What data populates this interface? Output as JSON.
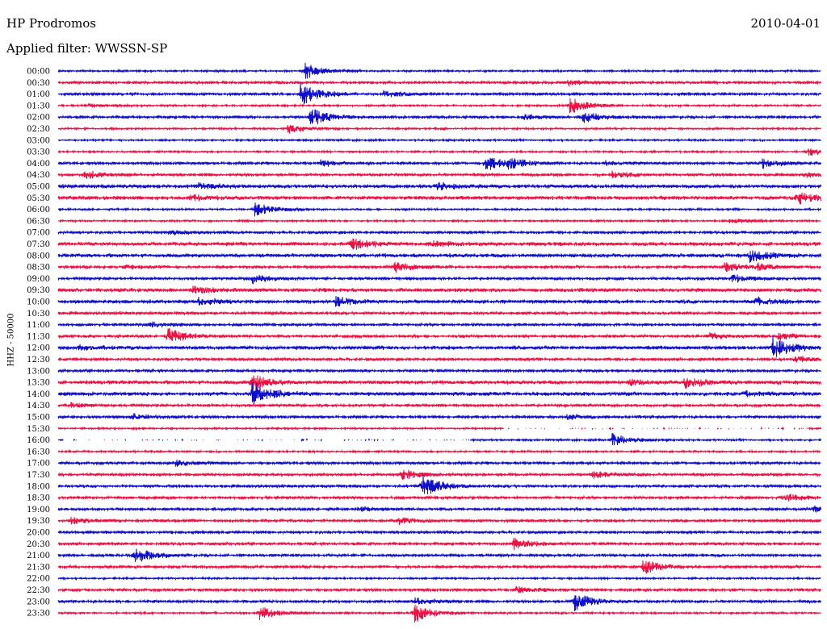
{
  "header": {
    "station": "HP Prodromos",
    "date": "2010-04-01",
    "filter": "Applied filter: WWSSN-SP",
    "scale": "HHZ - 50000"
  },
  "colors": {
    "odd": "#1010cc",
    "even": "#ee1144"
  },
  "chart_data": {
    "type": "line",
    "title": "HP Prodromos",
    "ylabel": "HHZ - 50000",
    "x_axis": "minutes within each 30-minute trace",
    "rows": [
      "00:00",
      "00:30",
      "01:00",
      "01:30",
      "02:00",
      "02:30",
      "03:00",
      "03:30",
      "04:00",
      "04:30",
      "05:00",
      "05:30",
      "06:00",
      "06:30",
      "07:00",
      "07:30",
      "08:00",
      "08:30",
      "09:00",
      "09:30",
      "10:00",
      "10:30",
      "11:00",
      "11:30",
      "12:00",
      "12:30",
      "13:00",
      "13:30",
      "14:00",
      "14:30",
      "15:00",
      "15:30",
      "16:00",
      "16:30",
      "17:00",
      "17:30",
      "18:00",
      "18:30",
      "19:00",
      "19:30",
      "20:00",
      "20:30",
      "21:00",
      "21:30",
      "22:00",
      "22:30",
      "23:00",
      "23:30"
    ],
    "noise_levels": [
      1,
      1.5,
      1.5,
      1,
      1.5,
      1,
      1,
      1,
      1.5,
      1.5,
      2,
      2,
      1,
      1,
      1.5,
      2,
      2,
      1.5,
      1.5,
      2,
      2,
      1.5,
      1.5,
      1.5,
      2,
      1.5,
      1.5,
      2,
      2,
      1.5,
      1.5,
      1,
      1,
      1,
      1.5,
      1.5,
      1.5,
      1.5,
      1.5,
      1.5,
      1.5,
      1.5,
      1.5,
      1.5,
      1,
      1.5,
      1.5,
      1
    ],
    "events": [
      {
        "row": "00:00",
        "minute": 9.7,
        "amplitude": 10
      },
      {
        "row": "00:30",
        "minute": 20.0,
        "amplitude": 3
      },
      {
        "row": "01:00",
        "minute": 9.5,
        "amplitude": 16
      },
      {
        "row": "01:00",
        "minute": 12.8,
        "amplitude": 4
      },
      {
        "row": "01:30",
        "minute": 20.1,
        "amplitude": 11
      },
      {
        "row": "01:30",
        "minute": 1.2,
        "amplitude": 2
      },
      {
        "row": "02:00",
        "minute": 9.9,
        "amplitude": 12
      },
      {
        "row": "02:00",
        "minute": 18.3,
        "amplitude": 3
      },
      {
        "row": "02:00",
        "minute": 20.6,
        "amplitude": 7
      },
      {
        "row": "02:30",
        "minute": 9.0,
        "amplitude": 6
      },
      {
        "row": "03:30",
        "minute": 29.5,
        "amplitude": 5
      },
      {
        "row": "04:00",
        "minute": 10.3,
        "amplitude": 4
      },
      {
        "row": "04:00",
        "minute": 16.8,
        "amplitude": 10
      },
      {
        "row": "04:00",
        "minute": 17.7,
        "amplitude": 5
      },
      {
        "row": "04:00",
        "minute": 27.7,
        "amplitude": 6
      },
      {
        "row": "04:00",
        "minute": 21.5,
        "amplitude": 2
      },
      {
        "row": "04:30",
        "minute": 1.0,
        "amplitude": 5
      },
      {
        "row": "04:30",
        "minute": 21.8,
        "amplitude": 4
      },
      {
        "row": "04:30",
        "minute": 29.4,
        "amplitude": 3
      },
      {
        "row": "05:00",
        "minute": 5.5,
        "amplitude": 4
      },
      {
        "row": "05:00",
        "minute": 14.9,
        "amplitude": 4
      },
      {
        "row": "05:30",
        "minute": 5.2,
        "amplitude": 3
      },
      {
        "row": "05:30",
        "minute": 29.1,
        "amplitude": 7
      },
      {
        "row": "06:00",
        "minute": 7.7,
        "amplitude": 9
      },
      {
        "row": "06:30",
        "minute": 26.4,
        "amplitude": 3
      },
      {
        "row": "07:00",
        "minute": 4.3,
        "amplitude": 3
      },
      {
        "row": "07:30",
        "minute": 11.5,
        "amplitude": 7
      },
      {
        "row": "07:30",
        "minute": 14.7,
        "amplitude": 3
      },
      {
        "row": "08:00",
        "minute": 27.2,
        "amplitude": 8
      },
      {
        "row": "08:30",
        "minute": 13.2,
        "amplitude": 6
      },
      {
        "row": "08:30",
        "minute": 26.2,
        "amplitude": 6
      },
      {
        "row": "08:30",
        "minute": 27.5,
        "amplitude": 4
      },
      {
        "row": "08:30",
        "minute": 2.5,
        "amplitude": 3
      },
      {
        "row": "09:00",
        "minute": 7.6,
        "amplitude": 6
      },
      {
        "row": "09:00",
        "minute": 26.5,
        "amplitude": 5
      },
      {
        "row": "09:30",
        "minute": 5.3,
        "amplitude": 4
      },
      {
        "row": "10:00",
        "minute": 10.9,
        "amplitude": 6
      },
      {
        "row": "10:00",
        "minute": 5.5,
        "amplitude": 5
      },
      {
        "row": "10:00",
        "minute": 27.4,
        "amplitude": 5
      },
      {
        "row": "11:00",
        "minute": 3.6,
        "amplitude": 3
      },
      {
        "row": "11:30",
        "minute": 4.3,
        "amplitude": 10
      },
      {
        "row": "11:30",
        "minute": 25.6,
        "amplitude": 4
      },
      {
        "row": "11:30",
        "minute": 28.3,
        "amplitude": 4
      },
      {
        "row": "12:00",
        "minute": 28.1,
        "amplitude": 14
      },
      {
        "row": "12:00",
        "minute": 0.8,
        "amplitude": 3
      },
      {
        "row": "12:30",
        "minute": 29.0,
        "amplitude": 4
      },
      {
        "row": "13:30",
        "minute": 7.6,
        "amplitude": 11
      },
      {
        "row": "13:30",
        "minute": 24.6,
        "amplitude": 8
      },
      {
        "row": "13:30",
        "minute": 22.5,
        "amplitude": 3
      },
      {
        "row": "14:00",
        "minute": 7.6,
        "amplitude": 16
      },
      {
        "row": "14:00",
        "minute": 27.0,
        "amplitude": 3
      },
      {
        "row": "14:30",
        "minute": 0.5,
        "amplitude": 3
      },
      {
        "row": "15:00",
        "minute": 2.9,
        "amplitude": 4
      },
      {
        "row": "15:00",
        "minute": 20.0,
        "amplitude": 3
      },
      {
        "row": "16:00",
        "minute": 21.8,
        "amplitude": 8
      },
      {
        "row": "17:00",
        "minute": 4.6,
        "amplitude": 4
      },
      {
        "row": "17:30",
        "minute": 13.5,
        "amplitude": 7
      },
      {
        "row": "17:30",
        "minute": 21.0,
        "amplitude": 5
      },
      {
        "row": "18:00",
        "minute": 14.3,
        "amplitude": 15
      },
      {
        "row": "18:30",
        "minute": 28.5,
        "amplitude": 5
      },
      {
        "row": "19:00",
        "minute": 29.7,
        "amplitude": 4
      },
      {
        "row": "19:00",
        "minute": 11.8,
        "amplitude": 3
      },
      {
        "row": "19:30",
        "minute": 0.5,
        "amplitude": 4
      },
      {
        "row": "19:30",
        "minute": 13.4,
        "amplitude": 4
      },
      {
        "row": "20:30",
        "minute": 17.9,
        "amplitude": 7
      },
      {
        "row": "21:00",
        "minute": 3.0,
        "amplitude": 10
      },
      {
        "row": "21:30",
        "minute": 23.0,
        "amplitude": 9
      },
      {
        "row": "22:30",
        "minute": 18.0,
        "amplitude": 4
      },
      {
        "row": "23:00",
        "minute": 14.0,
        "amplitude": 5
      },
      {
        "row": "23:00",
        "minute": 20.3,
        "amplitude": 12
      },
      {
        "row": "23:30",
        "minute": 14.0,
        "amplitude": 12
      },
      {
        "row": "23:30",
        "minute": 7.9,
        "amplitude": 9
      }
    ],
    "gaps": [
      {
        "row": "15:30",
        "from": 17.5,
        "to": 29.5
      },
      {
        "row": "16:00",
        "from": 0.2,
        "to": 16.2
      }
    ]
  }
}
